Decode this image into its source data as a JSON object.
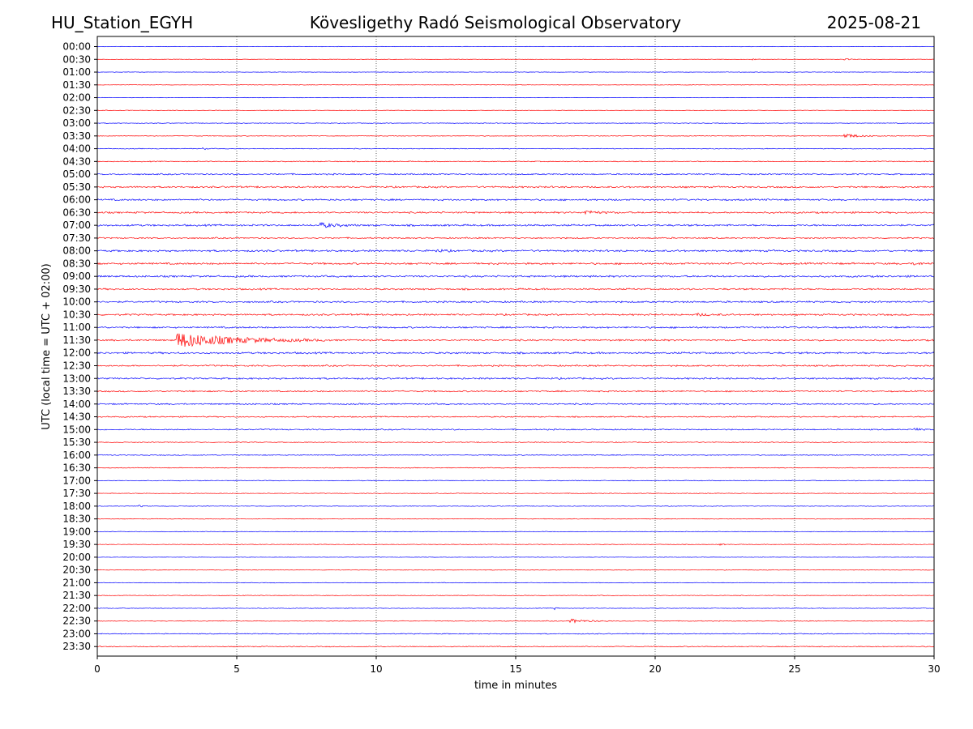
{
  "header": {
    "station": "HU_Station_EGYH",
    "title": "Kövesligethy Radó Seismological Observatory",
    "date": "2025-08-21"
  },
  "chart_data": {
    "type": "line",
    "title": "Kövesligethy Radó Seismological Observatory",
    "xlabel": "time in minutes",
    "ylabel": "UTC (local time = UTC + 02:00)",
    "xlim": [
      0,
      30
    ],
    "xticks": [
      0,
      5,
      10,
      15,
      20,
      25,
      30
    ],
    "grid": "vertical dotted at x ticks",
    "trace_colors": [
      "#0000ff",
      "#ff0000"
    ],
    "rows": [
      "00:00",
      "00:30",
      "01:00",
      "01:30",
      "02:00",
      "02:30",
      "03:00",
      "03:30",
      "04:00",
      "04:30",
      "05:00",
      "05:30",
      "06:00",
      "06:30",
      "07:00",
      "07:30",
      "08:00",
      "08:30",
      "09:00",
      "09:30",
      "10:00",
      "10:30",
      "11:00",
      "11:30",
      "12:00",
      "12:30",
      "13:00",
      "13:30",
      "14:00",
      "14:30",
      "15:00",
      "15:30",
      "16:00",
      "16:30",
      "17:00",
      "17:30",
      "18:00",
      "18:30",
      "19:00",
      "19:30",
      "20:00",
      "20:30",
      "21:00",
      "21:30",
      "22:00",
      "22:30",
      "23:00",
      "23:30"
    ],
    "noise_level": [
      0.15,
      0.15,
      0.15,
      0.15,
      0.15,
      0.18,
      0.2,
      0.2,
      0.25,
      0.3,
      0.45,
      0.55,
      0.55,
      0.55,
      0.6,
      0.45,
      0.6,
      0.6,
      0.6,
      0.55,
      0.55,
      0.55,
      0.55,
      0.55,
      0.6,
      0.5,
      0.55,
      0.45,
      0.45,
      0.4,
      0.4,
      0.3,
      0.3,
      0.25,
      0.25,
      0.2,
      0.2,
      0.2,
      0.2,
      0.2,
      0.15,
      0.2,
      0.2,
      0.2,
      0.2,
      0.25,
      0.3,
      0.3
    ],
    "events": [
      {
        "row": "00:30",
        "minute": 23.5,
        "amplitude": 0.6,
        "duration": 0.3
      },
      {
        "row": "00:30",
        "minute": 26.8,
        "amplitude": 0.5,
        "duration": 0.6
      },
      {
        "row": "03:30",
        "minute": 26.8,
        "amplitude": 1.8,
        "duration": 1.5
      },
      {
        "row": "04:00",
        "minute": 3.8,
        "amplitude": 1.0,
        "duration": 0.25
      },
      {
        "row": "06:30",
        "minute": 17.5,
        "amplitude": 1.5,
        "duration": 1.3
      },
      {
        "row": "07:00",
        "minute": 8.0,
        "amplitude": 1.8,
        "duration": 1.5
      },
      {
        "row": "08:00",
        "minute": 12.1,
        "amplitude": 1.0,
        "duration": 0.8
      },
      {
        "row": "08:30",
        "minute": 29.3,
        "amplitude": 1.0,
        "duration": 0.6
      },
      {
        "row": "10:30",
        "minute": 21.5,
        "amplitude": 0.8,
        "duration": 1.4
      },
      {
        "row": "11:30",
        "minute": 2.85,
        "amplitude": 6.0,
        "duration": 5.5
      },
      {
        "row": "15:00",
        "minute": 29.3,
        "amplitude": 1.4,
        "duration": 0.4
      },
      {
        "row": "18:00",
        "minute": 1.5,
        "amplitude": 0.9,
        "duration": 0.3
      },
      {
        "row": "19:30",
        "minute": 22.3,
        "amplitude": 0.7,
        "duration": 0.4
      },
      {
        "row": "22:00",
        "minute": 16.4,
        "amplitude": 1.0,
        "duration": 0.3
      },
      {
        "row": "22:30",
        "minute": 16.95,
        "amplitude": 1.6,
        "duration": 1.6
      }
    ]
  }
}
